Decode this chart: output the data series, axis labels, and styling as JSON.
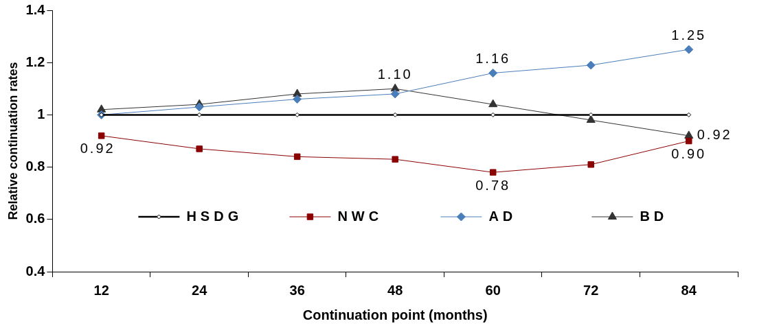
{
  "chart_data": {
    "type": "line",
    "xlabel": "Continuation point (months)",
    "ylabel": "Relative continuation rates",
    "categories": [
      "12",
      "24",
      "36",
      "48",
      "60",
      "72",
      "84"
    ],
    "ylim": [
      0.4,
      1.4
    ],
    "yticks": [
      0.4,
      0.6,
      0.8,
      1,
      1.2,
      1.4
    ],
    "grid": false,
    "legend": "bottom",
    "series": [
      {
        "name": "HSDG",
        "color": "#000000",
        "marker": "diamond",
        "values": [
          1.0,
          1.0,
          1.0,
          1.0,
          1.0,
          1.0,
          1.0
        ]
      },
      {
        "name": "NWC",
        "color": "#8b0000",
        "marker": "square",
        "values": [
          0.92,
          0.87,
          0.84,
          0.83,
          0.78,
          0.81,
          0.9
        ],
        "value_labels": [
          "0.92",
          null,
          null,
          null,
          "0.78",
          null,
          "0.90"
        ]
      },
      {
        "name": "AD",
        "color": "#4a7ebb",
        "marker": "diamond",
        "values": [
          1.0,
          1.03,
          1.06,
          1.08,
          1.16,
          1.19,
          1.25
        ],
        "value_labels": [
          null,
          null,
          null,
          null,
          "1.16",
          null,
          "1.25"
        ]
      },
      {
        "name": "BD",
        "color": "#333333",
        "marker": "triangle",
        "values": [
          1.02,
          1.04,
          1.08,
          1.1,
          1.04,
          0.98,
          0.92
        ],
        "value_labels": [
          null,
          null,
          null,
          "1.10",
          null,
          null,
          "0.92"
        ]
      }
    ]
  }
}
